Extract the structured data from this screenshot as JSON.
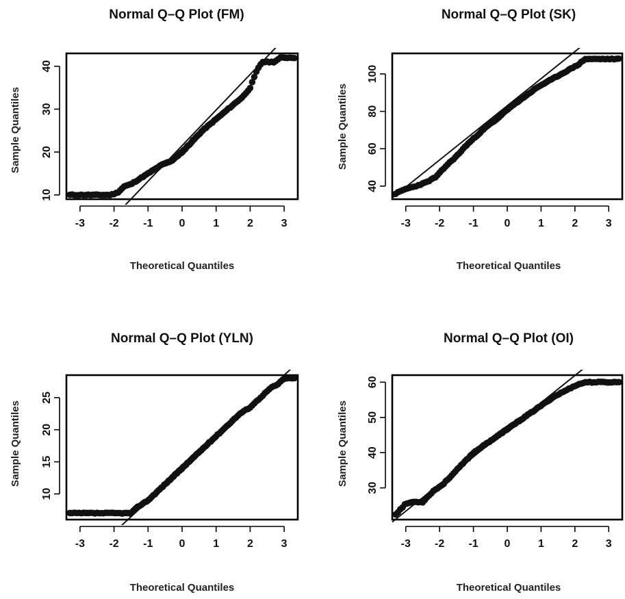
{
  "chart_data": [
    {
      "type": "scatter",
      "title": "Normal Q–Q Plot (FM)",
      "xlabel": "Theoretical Quantiles",
      "ylabel": "Sample Quantiles",
      "xlim": [
        -3.4,
        3.4
      ],
      "ylim": [
        9,
        43
      ],
      "x_ticks": [
        "-3",
        "-2",
        "-1",
        "0",
        "1",
        "2",
        "3"
      ],
      "y_ticks": [
        "10",
        "20",
        "30",
        "40"
      ],
      "reference_line": {
        "slope": 8.3,
        "intercept": 21.5
      },
      "quantile_curve": {
        "x": [
          -3.3,
          -3.0,
          -2.7,
          -2.4,
          -2.1,
          -1.9,
          -1.7,
          -1.5,
          -1.2,
          -0.9,
          -0.6,
          -0.3,
          0.0,
          0.3,
          0.6,
          0.9,
          1.2,
          1.5,
          1.8,
          2.0,
          2.2,
          2.35,
          2.5,
          2.7,
          2.9,
          3.0,
          3.3
        ],
        "y": [
          10,
          10,
          10,
          10,
          10,
          10.5,
          12,
          12.5,
          14,
          15.5,
          17,
          18,
          20,
          22.5,
          25,
          27,
          29,
          31,
          33,
          35,
          39,
          41,
          41,
          41,
          42,
          42,
          42
        ]
      }
    },
    {
      "type": "scatter",
      "title": "Normal Q–Q Plot (SK)",
      "xlabel": "Theoretical Quantiles",
      "ylabel": "Sample Quantiles",
      "xlim": [
        -3.4,
        3.4
      ],
      "ylim": [
        33,
        111
      ],
      "x_ticks": [
        "-3",
        "-2",
        "-1",
        "0",
        "1",
        "2",
        "3"
      ],
      "y_ticks": [
        "40",
        "60",
        "80",
        "100"
      ],
      "reference_line": {
        "slope": 14.5,
        "intercept": 83
      },
      "quantile_curve": {
        "x": [
          -3.3,
          -3.0,
          -2.7,
          -2.4,
          -2.1,
          -1.8,
          -1.5,
          -1.2,
          -0.9,
          -0.6,
          -0.3,
          0.0,
          0.3,
          0.6,
          0.9,
          1.2,
          1.5,
          1.8,
          2.1,
          2.3,
          2.6,
          2.9,
          3.0,
          3.3
        ],
        "y": [
          36,
          38.5,
          40,
          42,
          45,
          51,
          56,
          62,
          67,
          72,
          76,
          81,
          85,
          89,
          93,
          96,
          99,
          102,
          105,
          108,
          108,
          108,
          108,
          108
        ]
      }
    },
    {
      "type": "scatter",
      "title": "Normal Q–Q Plot (YLN)",
      "xlabel": "Theoretical Quantiles",
      "ylabel": "Sample Quantiles",
      "xlim": [
        -3.4,
        3.4
      ],
      "ylim": [
        6,
        28.5
      ],
      "x_ticks": [
        "-3",
        "-2",
        "-1",
        "0",
        "1",
        "2",
        "3"
      ],
      "y_ticks": [
        "10",
        "15",
        "20",
        "25"
      ],
      "reference_line": {
        "slope": 4.9,
        "intercept": 13.8
      },
      "quantile_curve": {
        "x": [
          -3.3,
          -3.0,
          -2.7,
          -2.4,
          -2.1,
          -1.8,
          -1.5,
          -1.3,
          -1.0,
          -0.7,
          -0.4,
          -0.1,
          0.2,
          0.5,
          0.8,
          1.1,
          1.4,
          1.7,
          2.0,
          2.3,
          2.6,
          2.8,
          3.0,
          3.3
        ],
        "y": [
          7,
          7,
          7,
          7,
          7,
          7,
          7,
          8,
          9,
          10.5,
          12,
          13.5,
          15,
          16.5,
          18,
          19.5,
          21,
          22.5,
          23.5,
          25,
          26.5,
          27,
          28,
          28
        ]
      }
    },
    {
      "type": "scatter",
      "title": "Normal Q–Q Plot (OI)",
      "xlabel": "Theoretical Quantiles",
      "ylabel": "Sample Quantiles",
      "xlim": [
        -3.4,
        3.4
      ],
      "ylim": [
        21,
        62
      ],
      "x_ticks": [
        "-3",
        "-2",
        "-1",
        "0",
        "1",
        "2",
        "3"
      ],
      "y_ticks": [
        "30",
        "40",
        "50",
        "60"
      ],
      "reference_line": {
        "slope": 7.7,
        "intercept": 46.5
      },
      "quantile_curve": {
        "x": [
          -3.3,
          -3.0,
          -2.8,
          -2.5,
          -2.2,
          -1.9,
          -1.6,
          -1.3,
          -1.0,
          -0.7,
          -0.4,
          -0.1,
          0.2,
          0.5,
          0.8,
          1.1,
          1.4,
          1.7,
          2.0,
          2.3,
          2.6,
          2.9,
          3.0,
          3.3
        ],
        "y": [
          22.5,
          25.5,
          26,
          26,
          29,
          31,
          34,
          37,
          40,
          42,
          44,
          46,
          48,
          50,
          52,
          54,
          56,
          57.5,
          59,
          60,
          60,
          60,
          60,
          60
        ]
      }
    }
  ]
}
